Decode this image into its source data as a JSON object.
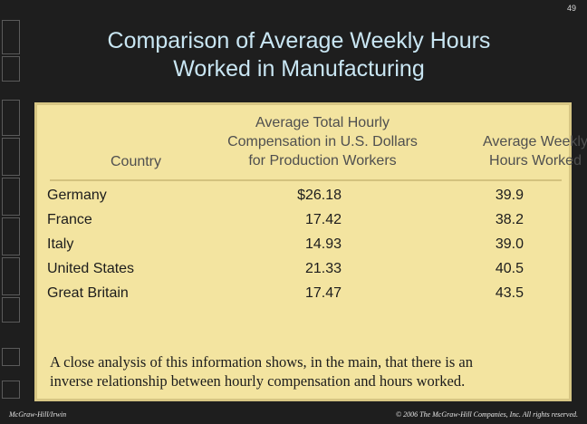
{
  "slide": {
    "page_number": "49",
    "title_line1": "Comparison of Average Weekly Hours",
    "title_line2": "Worked in Manufacturing"
  },
  "table": {
    "headers": {
      "country": "Country",
      "compensation": [
        "Average Total Hourly",
        "Compensation in U.S. Dollars",
        "for Production Workers"
      ],
      "hours": [
        "Average Weekly",
        "Hours Worked"
      ]
    },
    "rows": [
      {
        "country": "Germany",
        "compensation": "$26.18",
        "hours": "39.9"
      },
      {
        "country": "France",
        "compensation": "17.42",
        "hours": "38.2"
      },
      {
        "country": "Italy",
        "compensation": "14.93",
        "hours": "39.0"
      },
      {
        "country": "United States",
        "compensation": "21.33",
        "hours": "40.5"
      },
      {
        "country": "Great Britain",
        "compensation": "17.47",
        "hours": "43.5"
      }
    ]
  },
  "note": {
    "line1": "A close analysis of this information shows, in the main, that there is an",
    "line2": "inverse relationship between hourly compensation and hours worked."
  },
  "footer": {
    "publisher": "McGraw-Hill/Irwin",
    "copyright": "© 2006 The McGraw-Hill Companies, Inc. All rights reserved."
  },
  "colors": {
    "background": "#1e1e1e",
    "title": "#c9e6f3",
    "panel": "#f3e4a0",
    "panel_border": "#d7c684"
  }
}
